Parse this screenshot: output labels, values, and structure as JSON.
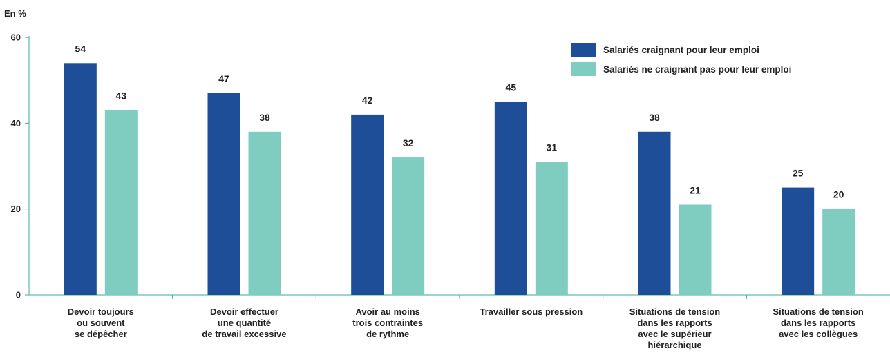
{
  "chart_data": {
    "type": "bar",
    "unit_label": "En %",
    "title": "",
    "xlabel": "",
    "ylabel": "",
    "ylim": [
      0,
      60
    ],
    "yticks": [
      0,
      20,
      40,
      60
    ],
    "grid": false,
    "legend_position": "top-right",
    "categories": [
      [
        "Devoir toujours",
        "ou souvent",
        "se dépêcher"
      ],
      [
        "Devoir effectuer",
        "une quantité",
        "de travail excessive"
      ],
      [
        "Avoir au moins",
        "trois contraintes",
        "de rythme"
      ],
      [
        "Travailler sous pression"
      ],
      [
        "Situations de tension",
        "dans les rapports",
        "avec le supérieur",
        "hiérarchique"
      ],
      [
        "Situations de tension",
        "dans les rapports",
        "avec les collègues"
      ]
    ],
    "series": [
      {
        "name": "Salariés craignant pour leur emploi",
        "color": "#1f4e99",
        "values": [
          54,
          47,
          42,
          45,
          38,
          25
        ]
      },
      {
        "name": "Salariés ne craignant pas pour leur emploi",
        "color": "#7ecdc0",
        "values": [
          43,
          38,
          32,
          31,
          21,
          20
        ]
      }
    ],
    "axis_color": "#3aaa9c"
  }
}
